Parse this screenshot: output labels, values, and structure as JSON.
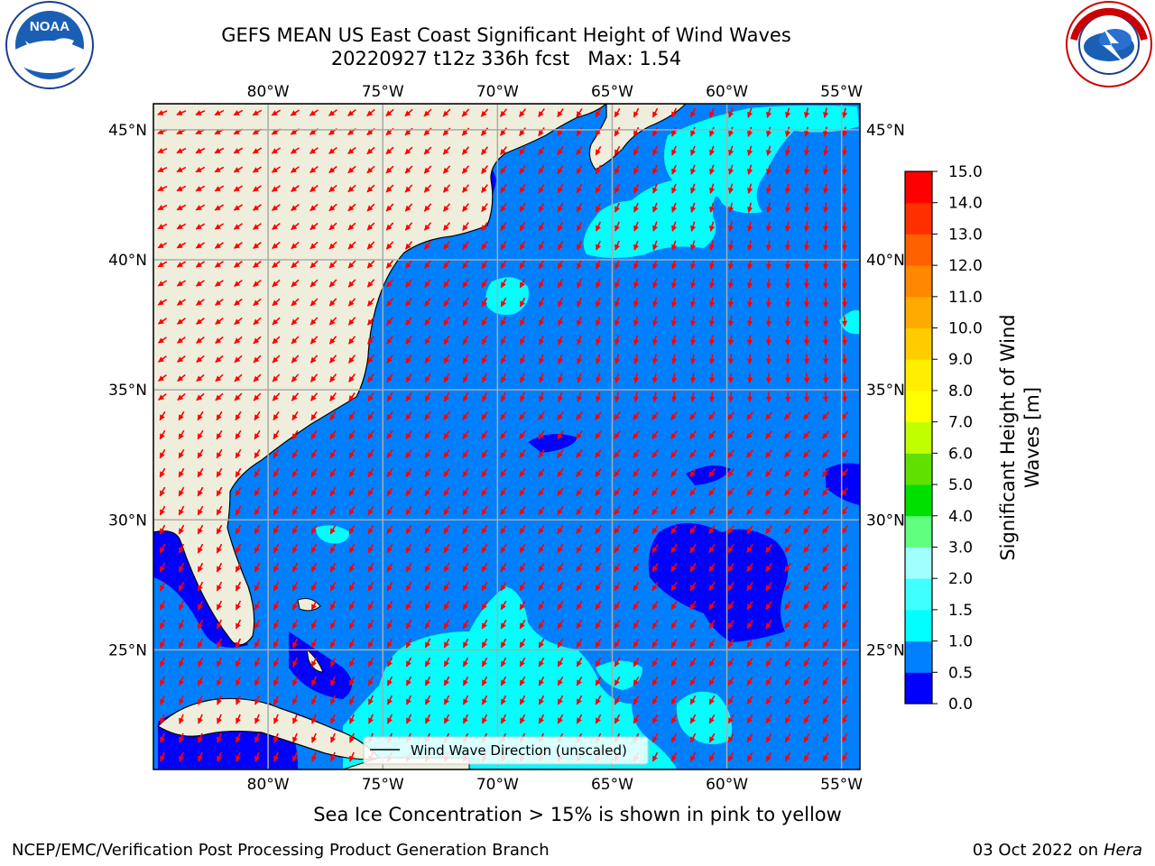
{
  "title": {
    "line1": "GEFS MEAN US East Coast Significant Height of Wind Waves",
    "line2": "20220927 t12z 336h fcst   Max: 1.54"
  },
  "logos": {
    "left": "NOAA",
    "left_ring_text": "NATIONAL OCEANIC AND ATMOSPHERIC ADMINISTRATION · U.S. DEPARTMENT OF COMMERCE",
    "right_ring_text": "NATIONAL WEATHER SERVICE"
  },
  "map": {
    "lon_labels": [
      "80°W",
      "75°W",
      "70°W",
      "65°W",
      "60°W",
      "55°W"
    ],
    "lat_labels": [
      "45°N",
      "40°N",
      "35°N",
      "30°N",
      "25°N"
    ],
    "lon_range": [
      -85,
      -54.2
    ],
    "lat_range": [
      20.4,
      46
    ],
    "legend_label": "Wind Wave Direction (unscaled)",
    "arrow_color": "#ff0000",
    "land_color": "#efeedc"
  },
  "colorbar": {
    "label": "Significant Height of Wind Waves [m]",
    "ticks": [
      "0.0",
      "0.5",
      "1.0",
      "1.5",
      "2.0",
      "3.0",
      "4.0",
      "5.0",
      "6.0",
      "7.0",
      "8.0",
      "9.0",
      "10.0",
      "11.0",
      "12.0",
      "13.0",
      "14.0",
      "15.0"
    ],
    "colors": [
      "#0000ff",
      "#0080ff",
      "#00ffff",
      "#40ffff",
      "#a0ffff",
      "#60ff80",
      "#00e000",
      "#60e000",
      "#c0ff00",
      "#ffff00",
      "#ffee00",
      "#ffcc00",
      "#ffaa00",
      "#ff8800",
      "#ff6000",
      "#ff3000",
      "#ff0000"
    ]
  },
  "subnote": "Sea Ice Concentration > 15% is shown in pink to yellow",
  "footer": {
    "left": "NCEP/EMC/Verification Post Processing Product Generation Branch",
    "right_date": "03 Oct 2022 on",
    "right_host": "Hera"
  }
}
